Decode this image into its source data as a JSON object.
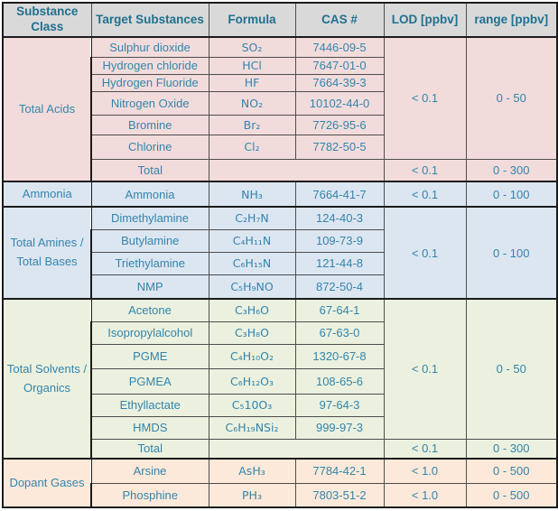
{
  "headers": {
    "substance_class": "Substance Class",
    "target": "Target Substances",
    "formula": "Formula",
    "cas": "CAS #",
    "lod": "LOD [ppbv]",
    "range": "range [ppbv]"
  },
  "acids": {
    "label": "Total Acids",
    "rows": [
      {
        "name": "Sulphur dioxide",
        "formula": "SO₂",
        "cas": "7446-09-5"
      },
      {
        "name": "Hydrogen chloride",
        "formula": "HCl",
        "cas": "7647-01-0"
      },
      {
        "name": "Hydrogen Fluoride",
        "formula": "HF",
        "cas": "7664-39-3"
      },
      {
        "name": "Nitrogen Oxide",
        "formula": "NO₂",
        "cas": "10102-44-0"
      },
      {
        "name": "Bromine",
        "formula": "Br₂",
        "cas": "7726-95-6"
      },
      {
        "name": "Chlorine",
        "formula": "Cl₂",
        "cas": "7782-50-5"
      }
    ],
    "lod": "< 0.1",
    "range": "0 - 50",
    "total": {
      "label": "Total",
      "lod": "< 0.1",
      "range": "0 - 300"
    }
  },
  "ammonia": {
    "label": "Ammonia",
    "rows": [
      {
        "name": "Ammonia",
        "formula": "NH₃",
        "cas": "7664-41-7",
        "lod": "< 0.1",
        "range": "0 - 100"
      }
    ]
  },
  "amines": {
    "label": "Total Amines / Total Bases",
    "rows": [
      {
        "name": "Dimethylamine",
        "formula": "C₂H₇N",
        "cas": "124-40-3"
      },
      {
        "name": "Butylamine",
        "formula": "C₄H₁₁N",
        "cas": "109-73-9"
      },
      {
        "name": "Triethylamine",
        "formula": "C₆H₁₅N",
        "cas": "121-44-8"
      },
      {
        "name": "NMP",
        "formula": "C₅H₉NO",
        "cas": "872-50-4"
      }
    ],
    "lod": "< 0.1",
    "range": "0 - 100"
  },
  "solvents": {
    "label": "Total Solvents / Organics",
    "rows": [
      {
        "name": "Acetone",
        "formula": "C₃H₆O",
        "cas": "67-64-1"
      },
      {
        "name": "Isopropylalcohol",
        "formula": "C₃H₈O",
        "cas": "67-63-0"
      },
      {
        "name": "PGME",
        "formula": "C₄H₁₀O₂",
        "cas": "1320-67-8"
      },
      {
        "name": "PGMEA",
        "formula": "C₆H₁₂O₃",
        "cas": "108-65-6"
      },
      {
        "name": "Ethyllactate",
        "formula": "C₅10O₃",
        "cas": "97-64-3"
      },
      {
        "name": "HMDS",
        "formula": "C₆H₁₉NSi₂",
        "cas": "999-97-3"
      }
    ],
    "lod": "< 0.1",
    "range": "0 - 50",
    "total": {
      "label": "Total",
      "lod": "< 0.1",
      "range": "0 - 300"
    }
  },
  "dopant": {
    "label": "Dopant Gases",
    "rows": [
      {
        "name": "Arsine",
        "formula": "AsH₃",
        "cas": "7784-42-1",
        "lod": "< 1.0",
        "range": "0 - 500"
      },
      {
        "name": "Phosphine",
        "formula": "PH₃",
        "cas": "7803-51-2",
        "lod": "< 1.0",
        "range": "0 - 500"
      }
    ]
  },
  "colors": {
    "acids_bg": "#F2DCDB",
    "ammonia_bg": "#DCE6F1",
    "amines_bg": "#DCE6F1",
    "solvents_bg": "#EBF1DE",
    "dopant_bg": "#FDE9D9",
    "header_bg": "#D9D9D9",
    "body_text": "#3484AC",
    "header_text": "#20708F",
    "grid_line": "#4D4D4D",
    "section_line": "#1B1B1B"
  }
}
